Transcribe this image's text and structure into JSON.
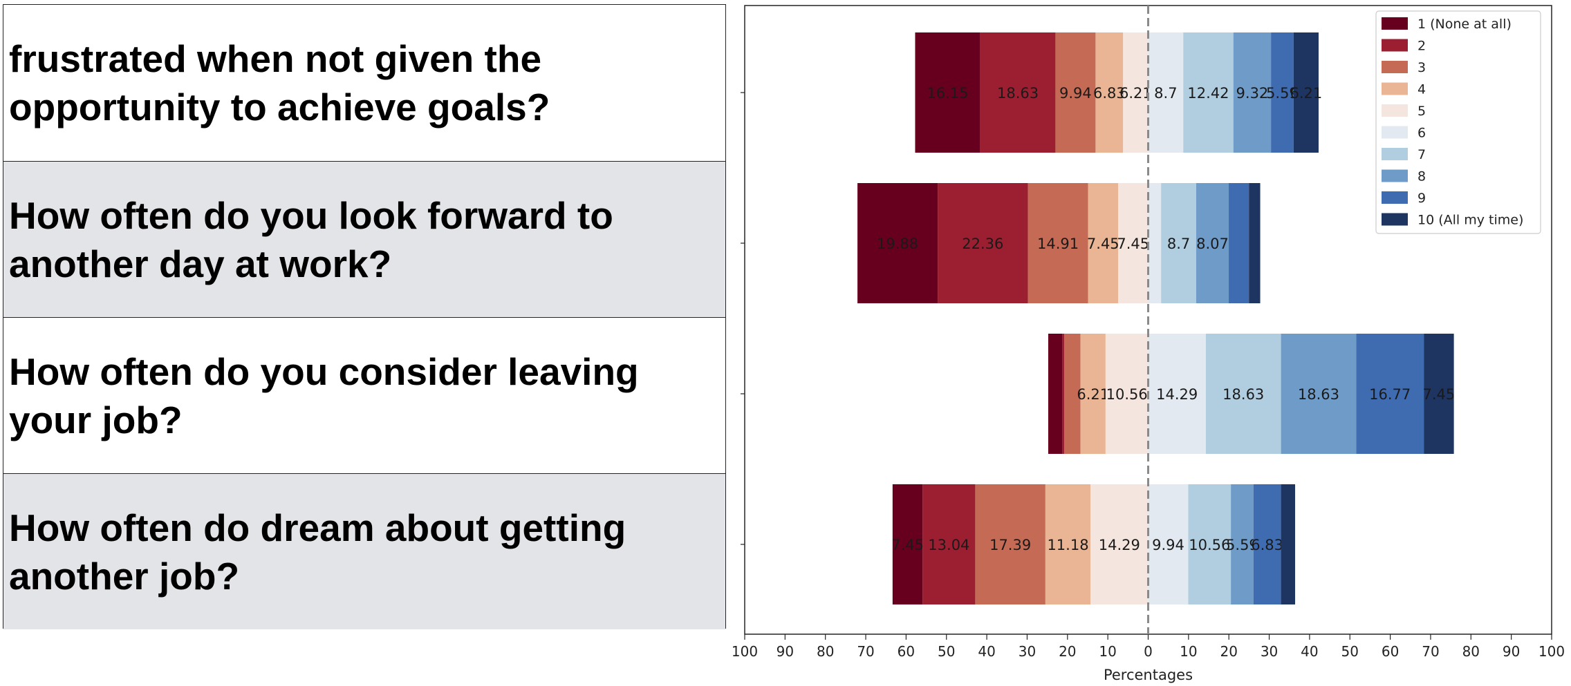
{
  "questions": [
    {
      "text": "frustrated when not given the opportunity to achieve goals?",
      "shaded": false
    },
    {
      "text": "How often do you look forward to another day at work?",
      "shaded": true
    },
    {
      "text": "How often do you consider leaving your job?",
      "shaded": false
    },
    {
      "text": "How often do dream about getting another job?",
      "shaded": true
    }
  ],
  "chart_data": {
    "type": "bar",
    "orientation": "horizontal-diverging-stacked",
    "xlabel": "Percentages",
    "ylabel": "",
    "xlim": [
      -100,
      100
    ],
    "xticks": [
      "100",
      "90",
      "80",
      "70",
      "60",
      "50",
      "40",
      "30",
      "20",
      "10",
      "0",
      "10",
      "20",
      "30",
      "40",
      "50",
      "60",
      "70",
      "80",
      "90",
      "100"
    ],
    "grid": false,
    "legend_position": "top-right",
    "midline": "dashed at 0",
    "categories": [
      "frustrated when not given the opportunity to achieve goals?",
      "How often do you look forward to another day at work?",
      "How often do you consider leaving your job?",
      "How often do dream about getting another job?"
    ],
    "series": [
      {
        "name": "1 (None at all)",
        "color": "#67001f",
        "values": [
          16.15,
          19.88,
          3.5,
          7.45
        ]
      },
      {
        "name": "2",
        "color": "#9b1f30",
        "values": [
          18.63,
          22.36,
          0.5,
          13.04
        ]
      },
      {
        "name": "3",
        "color": "#c56b55",
        "values": [
          9.94,
          14.91,
          4.0,
          17.39
        ]
      },
      {
        "name": "4",
        "color": "#e9b595",
        "values": [
          6.83,
          7.45,
          6.21,
          11.18
        ]
      },
      {
        "name": "5",
        "color": "#f4e5de",
        "values": [
          6.21,
          7.45,
          10.56,
          14.29
        ]
      },
      {
        "name": "6",
        "color": "#e2e9f0",
        "values": [
          8.7,
          3.2,
          14.29,
          9.94
        ]
      },
      {
        "name": "7",
        "color": "#b1cde0",
        "values": [
          12.42,
          8.7,
          18.63,
          10.56
        ]
      },
      {
        "name": "8",
        "color": "#6e9bc8",
        "values": [
          9.32,
          8.07,
          18.63,
          5.59
        ]
      },
      {
        "name": "9",
        "color": "#3f6cb1",
        "values": [
          5.59,
          5.0,
          16.77,
          6.83
        ]
      },
      {
        "name": "10 (All my time)",
        "color": "#1e3461",
        "values": [
          6.21,
          2.8,
          7.45,
          3.5
        ]
      }
    ],
    "data_labels": [
      [
        "16.15",
        "18.63",
        "9.94",
        "6.83",
        "6.21",
        "8.7",
        "12.42",
        "9.32",
        "5.59",
        "6.21"
      ],
      [
        "19.88",
        "22.36",
        "14.91",
        "7.45",
        "7.45",
        "",
        "8.7",
        "8.07",
        "",
        ""
      ],
      [
        "",
        "",
        "",
        "6.21",
        "10.56",
        "14.29",
        "18.63",
        "18.63",
        "16.77",
        "7.45"
      ],
      [
        "7.45",
        "13.04",
        "17.39",
        "11.18",
        "14.29",
        "9.94",
        "10.56",
        "5.59",
        "6.83",
        ""
      ]
    ]
  }
}
